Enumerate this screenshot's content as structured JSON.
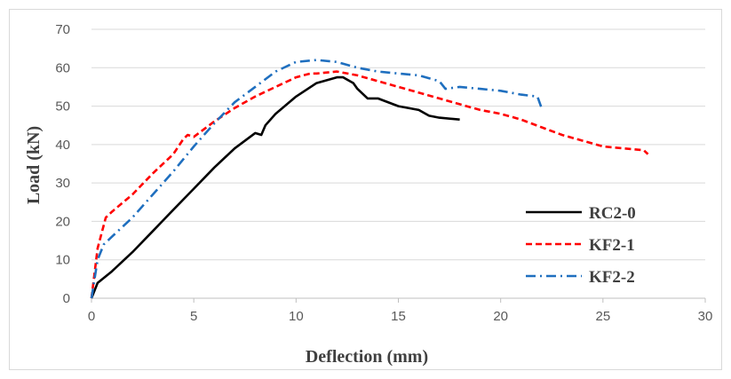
{
  "chart_data": {
    "type": "line",
    "title": "",
    "xlabel": "Deflection (mm)",
    "ylabel": "Load (kN)",
    "xlim": [
      0,
      30
    ],
    "ylim": [
      0,
      70
    ],
    "xticks": [
      "0",
      "5",
      "10",
      "15",
      "20",
      "25",
      "30"
    ],
    "yticks": [
      "0",
      "10",
      "20",
      "30",
      "40",
      "50",
      "60",
      "70"
    ],
    "grid": "horizontal",
    "legend_position": "bottom-right",
    "series": [
      {
        "name": "RC2-0",
        "color": "#000000",
        "style": "solid",
        "x": [
          0,
          0.3,
          1,
          2,
          3,
          4,
          5,
          6,
          7,
          8,
          8.3,
          8.5,
          9,
          10,
          11,
          12,
          12.3,
          12.8,
          13,
          13.5,
          14,
          15,
          16,
          16.5,
          17,
          18
        ],
        "y": [
          0,
          4,
          7,
          12,
          17.5,
          23,
          28.5,
          34,
          39,
          43,
          42.5,
          45,
          48,
          52.5,
          56,
          57.5,
          57.5,
          56,
          54.5,
          52,
          52,
          50,
          49,
          47.5,
          47,
          46.5
        ]
      },
      {
        "name": "KF2-1",
        "color": "#ff0000",
        "style": "dashed",
        "x": [
          0,
          0.3,
          0.7,
          1,
          2,
          3,
          4,
          4.5,
          4.7,
          5,
          6,
          7,
          8,
          9,
          10,
          10.7,
          11,
          12,
          13,
          14,
          15,
          16,
          17,
          18,
          19,
          20,
          21,
          22,
          23,
          24,
          25,
          26,
          27,
          27.2
        ],
        "y": [
          0,
          13,
          21,
          22.5,
          27,
          32.5,
          37.5,
          41.5,
          42.5,
          42,
          46,
          49.5,
          52.5,
          55,
          57.5,
          58.5,
          58.5,
          59,
          58,
          56.5,
          55,
          53.5,
          52,
          50.5,
          49,
          48,
          46.5,
          44.5,
          42.5,
          41,
          39.5,
          39,
          38.5,
          37.5
        ]
      },
      {
        "name": "KF2-2",
        "color": "#1f6fbf",
        "style": "dashdot",
        "x": [
          0,
          0.3,
          0.6,
          1,
          2,
          3,
          4,
          5,
          6,
          7,
          8,
          9,
          10,
          11,
          12,
          13,
          14,
          15,
          16,
          17,
          17.3,
          18,
          19,
          20,
          21,
          21.8,
          22
        ],
        "y": [
          0,
          10,
          14,
          16,
          21,
          27,
          33,
          39.5,
          45.5,
          51,
          55,
          59,
          61.5,
          62,
          61.5,
          60,
          59,
          58.5,
          58,
          56.5,
          54.5,
          55,
          54.5,
          54,
          53,
          52.5,
          49.5
        ]
      }
    ]
  }
}
